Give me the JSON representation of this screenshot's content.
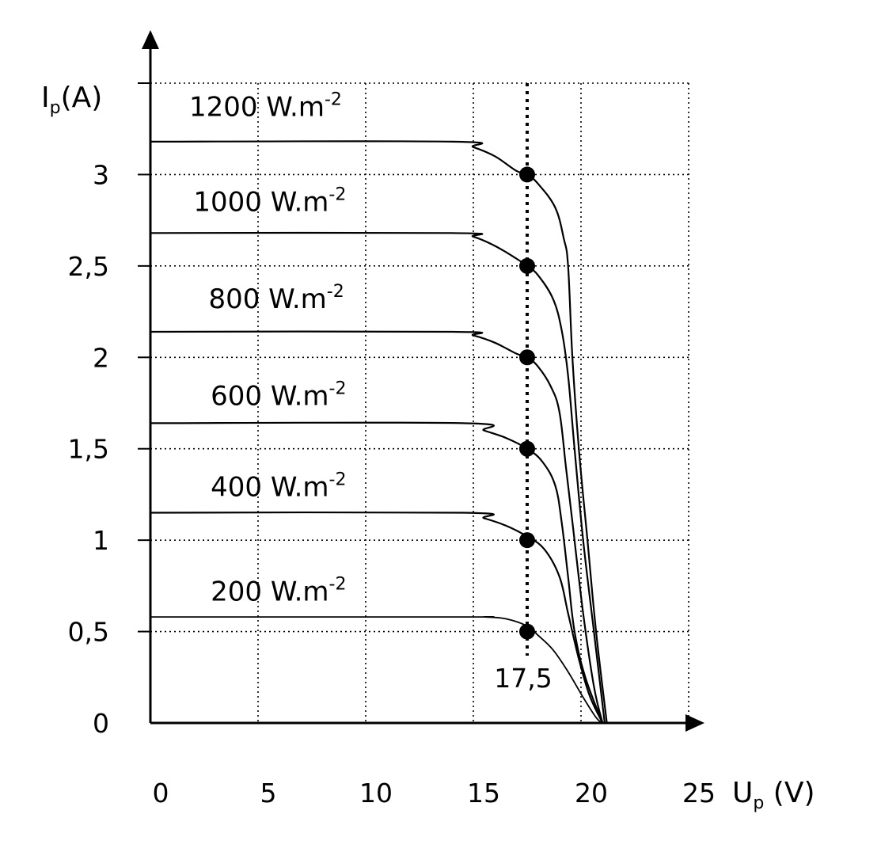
{
  "chart_data": {
    "type": "line",
    "title": "",
    "ylabel": {
      "main": "I",
      "sub": "p",
      "rest": "(A)"
    },
    "xlabel": {
      "main": "U",
      "sub": "p",
      "rest": " (V)"
    },
    "xlim": [
      0,
      25
    ],
    "ylim": [
      0,
      3.5
    ],
    "x_ticks": [
      {
        "value": 0,
        "label": "0"
      },
      {
        "value": 5,
        "label": "5"
      },
      {
        "value": 10,
        "label": "10"
      },
      {
        "value": 15,
        "label": "15"
      },
      {
        "value": 20,
        "label": "20"
      },
      {
        "value": 25,
        "label": "25"
      }
    ],
    "y_ticks": [
      {
        "value": 0,
        "label": "0"
      },
      {
        "value": 0.5,
        "label": "0,5"
      },
      {
        "value": 1,
        "label": "1"
      },
      {
        "value": 1.5,
        "label": "1,5"
      },
      {
        "value": 2,
        "label": "2"
      },
      {
        "value": 2.5,
        "label": "2,5"
      },
      {
        "value": 3,
        "label": "3"
      }
    ],
    "grid": true,
    "series": [
      {
        "name": "1200 W.m",
        "exponent": "-2",
        "label_pos": [
          1.8,
          3.32
        ],
        "points": [
          [
            0,
            3.18
          ],
          [
            14,
            3.18
          ],
          [
            15,
            3.15
          ],
          [
            16,
            3.1
          ],
          [
            17,
            3.02
          ],
          [
            17.5,
            3.0
          ],
          [
            18,
            2.95
          ],
          [
            18.8,
            2.82
          ],
          [
            19.2,
            2.65
          ],
          [
            19.4,
            2.5
          ],
          [
            19.6,
            2.0
          ],
          [
            19.9,
            1.5
          ],
          [
            20.3,
            1.0
          ],
          [
            20.7,
            0.5
          ],
          [
            21.2,
            0.0
          ]
        ]
      },
      {
        "name": "1000 W.m",
        "exponent": "-2",
        "label_pos": [
          2.0,
          2.8
        ],
        "points": [
          [
            0,
            2.68
          ],
          [
            14,
            2.68
          ],
          [
            15,
            2.66
          ],
          [
            16,
            2.61
          ],
          [
            17,
            2.54
          ],
          [
            17.5,
            2.5
          ],
          [
            18,
            2.45
          ],
          [
            18.7,
            2.32
          ],
          [
            19.1,
            2.15
          ],
          [
            19.4,
            1.9
          ],
          [
            19.7,
            1.5
          ],
          [
            20.1,
            1.0
          ],
          [
            20.6,
            0.5
          ],
          [
            21.1,
            0.0
          ]
        ]
      },
      {
        "name": "800 W.m",
        "exponent": "-2",
        "label_pos": [
          2.7,
          2.27
        ],
        "points": [
          [
            0,
            2.14
          ],
          [
            14,
            2.14
          ],
          [
            15,
            2.12
          ],
          [
            16,
            2.08
          ],
          [
            17,
            2.02
          ],
          [
            17.5,
            2.0
          ],
          [
            18,
            1.95
          ],
          [
            18.6,
            1.84
          ],
          [
            19.0,
            1.7
          ],
          [
            19.3,
            1.4
          ],
          [
            19.6,
            1.1
          ],
          [
            20.1,
            0.6
          ],
          [
            20.6,
            0.2
          ],
          [
            21.0,
            0.0
          ]
        ]
      },
      {
        "name": "600 W.m",
        "exponent": "-2",
        "label_pos": [
          2.8,
          1.74
        ],
        "points": [
          [
            0,
            1.64
          ],
          [
            14.5,
            1.64
          ],
          [
            15.5,
            1.6
          ],
          [
            16.5,
            1.56
          ],
          [
            17.5,
            1.5
          ],
          [
            18.2,
            1.43
          ],
          [
            18.8,
            1.3
          ],
          [
            19.1,
            1.1
          ],
          [
            19.4,
            0.8
          ],
          [
            19.7,
            0.5
          ],
          [
            20.2,
            0.25
          ],
          [
            21.0,
            0.0
          ]
        ]
      },
      {
        "name": "400 W.m",
        "exponent": "-2",
        "label_pos": [
          2.8,
          1.24
        ],
        "points": [
          [
            0,
            1.15
          ],
          [
            14.5,
            1.15
          ],
          [
            15.5,
            1.12
          ],
          [
            16.5,
            1.08
          ],
          [
            17.5,
            1.02
          ],
          [
            18.3,
            0.95
          ],
          [
            19.0,
            0.8
          ],
          [
            19.4,
            0.6
          ],
          [
            19.9,
            0.35
          ],
          [
            20.4,
            0.15
          ],
          [
            21.0,
            0.0
          ]
        ]
      },
      {
        "name": "200 W.m",
        "exponent": "-2",
        "label_pos": [
          2.8,
          0.67
        ],
        "points": [
          [
            0,
            0.58
          ],
          [
            14.5,
            0.58
          ],
          [
            15.5,
            0.58
          ],
          [
            16.5,
            0.57
          ],
          [
            17.5,
            0.53
          ],
          [
            18,
            0.48
          ],
          [
            18.7,
            0.4
          ],
          [
            19.4,
            0.28
          ],
          [
            20.1,
            0.14
          ],
          [
            20.7,
            0.03
          ],
          [
            21.0,
            0.0
          ]
        ]
      }
    ],
    "mpp_line": {
      "x": 17.5,
      "label": "17,5"
    },
    "mpp_points": [
      [
        17.5,
        3.0
      ],
      [
        17.5,
        2.5
      ],
      [
        17.5,
        2.0
      ],
      [
        17.5,
        1.5
      ],
      [
        17.5,
        1.0
      ],
      [
        17.5,
        0.5
      ]
    ]
  }
}
